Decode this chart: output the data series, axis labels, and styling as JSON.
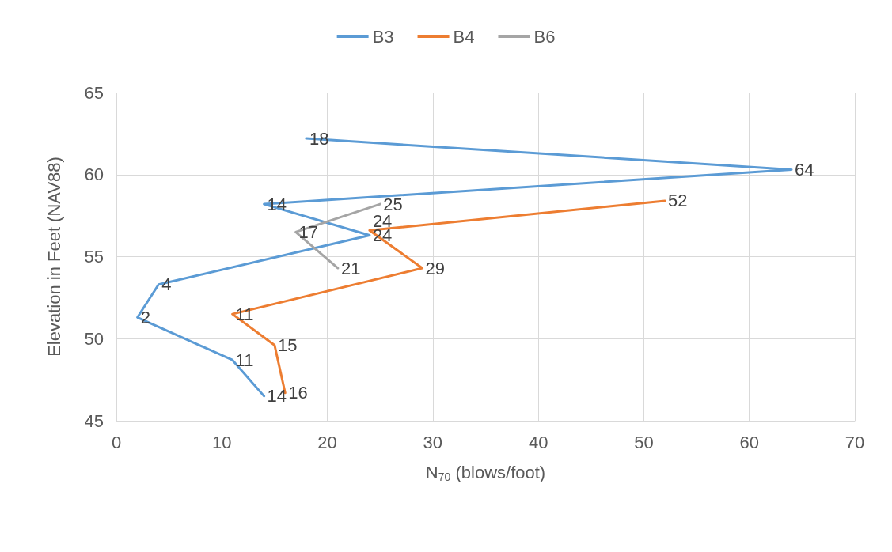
{
  "chart_data": {
    "type": "line",
    "xlabel": "N$_{70}$ (blows/foot)",
    "ylabel": "Elevation in Feet (NAV88)",
    "xlim": [
      0,
      70
    ],
    "xticks": [
      0,
      10,
      20,
      30,
      40,
      50,
      60,
      70
    ],
    "ylim": [
      45,
      65
    ],
    "yticks": [
      45,
      50,
      55,
      60,
      65
    ],
    "grid": true,
    "legend": "top",
    "marker": "none",
    "line_style": "solid",
    "series": [
      {
        "name": "B3",
        "color": "#5b9bd5",
        "x": [
          18,
          64,
          14,
          24,
          4,
          2,
          11,
          14
        ],
        "values": [
          62.2,
          60.3,
          58.2,
          56.3,
          53.3,
          51.3,
          48.7,
          46.5
        ]
      },
      {
        "name": "B4",
        "color": "#ed7d31",
        "x": [
          52,
          24,
          29,
          11,
          15,
          16
        ],
        "values": [
          58.4,
          56.6,
          54.3,
          51.5,
          49.6,
          46.7
        ]
      },
      {
        "name": "B6",
        "color": "#a5a5a5",
        "x": [
          25,
          17,
          21
        ],
        "values": [
          58.2,
          56.5,
          54.3
        ]
      }
    ],
    "annotations": [
      {
        "text": "18",
        "x": 18,
        "y": 62.2
      },
      {
        "text": "64",
        "x": 64,
        "y": 60.3
      },
      {
        "text": "14",
        "x": 14,
        "y": 58.2
      },
      {
        "text": "24",
        "x": 24,
        "y": 56.3
      },
      {
        "text": "4",
        "x": 4,
        "y": 53.3
      },
      {
        "text": "2",
        "x": 2,
        "y": 51.3
      },
      {
        "text": "11",
        "x": 11,
        "y": 48.7
      },
      {
        "text": "14",
        "x": 14,
        "y": 46.5
      },
      {
        "text": "52",
        "x": 52,
        "y": 58.4
      },
      {
        "text": "24",
        "x": 24,
        "y": 56.6
      },
      {
        "text": "29",
        "x": 29,
        "y": 54.3
      },
      {
        "text": "11",
        "x": 11,
        "y": 51.5
      },
      {
        "text": "15",
        "x": 15,
        "y": 49.6
      },
      {
        "text": "16",
        "x": 16,
        "y": 46.7
      },
      {
        "text": "25",
        "x": 25,
        "y": 58.2
      },
      {
        "text": "17",
        "x": 17,
        "y": 56.5
      },
      {
        "text": "21",
        "x": 21,
        "y": 54.3
      }
    ]
  }
}
